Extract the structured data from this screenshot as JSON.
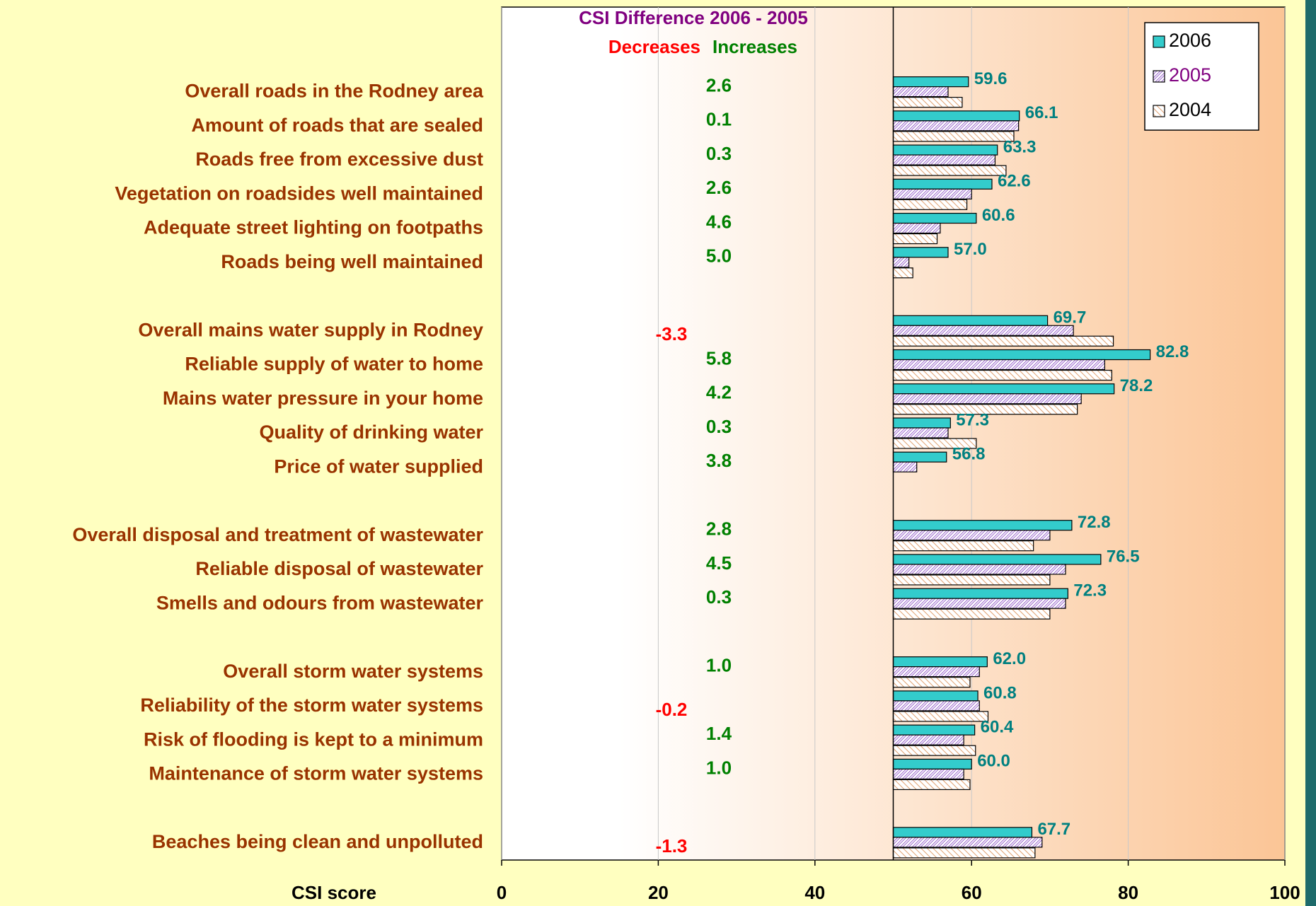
{
  "chart_data": {
    "type": "bar",
    "orientation": "horizontal",
    "x_label": "CSI score",
    "xlim": [
      0,
      100
    ],
    "xticks": [
      0,
      20,
      40,
      60,
      80,
      100
    ],
    "grid": true,
    "bar_origin": 50,
    "legend": "upper right",
    "categories": [
      null,
      null,
      "Overall roads in the Rodney area",
      "Amount of roads that are sealed",
      "Roads free from excessive dust",
      "Vegetation on roadsides well maintained",
      "Adequate street lighting on footpaths",
      "Roads being well maintained",
      null,
      "Overall mains water supply in Rodney",
      "Reliable supply of water to home",
      "Mains water pressure in your home",
      "Quality of drinking water ",
      "Price of water supplied",
      null,
      "Overall disposal and treatment of wastewater",
      "Reliable disposal of wastewater",
      "Smells and odours from wastewater",
      null,
      "Overall storm water systems",
      "Reliability of the storm water systems",
      "Risk of flooding is kept to a minimum",
      "Maintenance of storm water systems",
      null,
      "Beaches being clean and unpolluted"
    ],
    "series": [
      {
        "name": "2006",
        "color": "#33cccc",
        "pattern": "solid",
        "label_color": "#000000",
        "values": [
          null,
          null,
          59.6,
          66.1,
          63.3,
          62.6,
          60.6,
          57.0,
          null,
          69.7,
          82.8,
          78.2,
          57.3,
          56.8,
          null,
          72.8,
          76.5,
          72.3,
          null,
          62.0,
          60.8,
          60.4,
          60.0,
          null,
          67.7
        ],
        "value_labels": [
          null,
          null,
          "59.6",
          "66.1",
          "63.3",
          "62.6",
          "60.6",
          "57.0",
          null,
          "69.7",
          "82.8",
          "78.2",
          "57.3",
          "56.8",
          null,
          "72.8",
          "76.5",
          "72.3",
          null,
          "62.0",
          "60.8",
          "60.4",
          "60.0",
          null,
          "67.7"
        ]
      },
      {
        "name": "2005",
        "color": "#9966cc",
        "pattern": "hatch",
        "label_color": "#800080",
        "values": [
          null,
          null,
          57.0,
          66.0,
          63.0,
          60.0,
          56.0,
          52.0,
          null,
          73.0,
          77.0,
          74.0,
          57.0,
          53.0,
          null,
          70.0,
          72.0,
          72.0,
          null,
          61.0,
          61.0,
          59.0,
          59.0,
          null,
          69.0
        ]
      },
      {
        "name": "2004",
        "color": "#e0a070",
        "pattern": "hatch",
        "label_color": "#000000",
        "values": [
          null,
          null,
          58.8,
          65.4,
          64.4,
          59.4,
          55.6,
          52.5,
          null,
          78.1,
          77.9,
          73.5,
          60.6,
          null,
          null,
          67.9,
          70.0,
          70.0,
          null,
          59.8,
          62.1,
          60.5,
          59.8,
          null,
          68.1
        ]
      }
    ],
    "difference": {
      "title": "CSI Difference 2006 - 2005",
      "decrease_label": "Decreases",
      "increase_label": "Increases",
      "decrease_color": "#ff0000",
      "increase_color": "#008000",
      "values": [
        null,
        null,
        2.6,
        0.1,
        0.3,
        2.6,
        4.6,
        5.0,
        null,
        -3.3,
        5.8,
        4.2,
        0.3,
        3.8,
        null,
        2.8,
        4.5,
        0.3,
        null,
        1.0,
        -0.2,
        1.4,
        1.0,
        null,
        -1.3
      ],
      "value_labels": [
        null,
        null,
        "2.6",
        "0.1",
        "0.3",
        "2.6",
        "4.6",
        "5.0",
        null,
        "-3.3",
        "5.8",
        "4.2",
        "0.3",
        "3.8",
        null,
        "2.8",
        "4.5",
        "0.3",
        null,
        "1.0",
        "-0.2",
        "1.4",
        "1.0",
        null,
        "-1.3"
      ]
    }
  }
}
